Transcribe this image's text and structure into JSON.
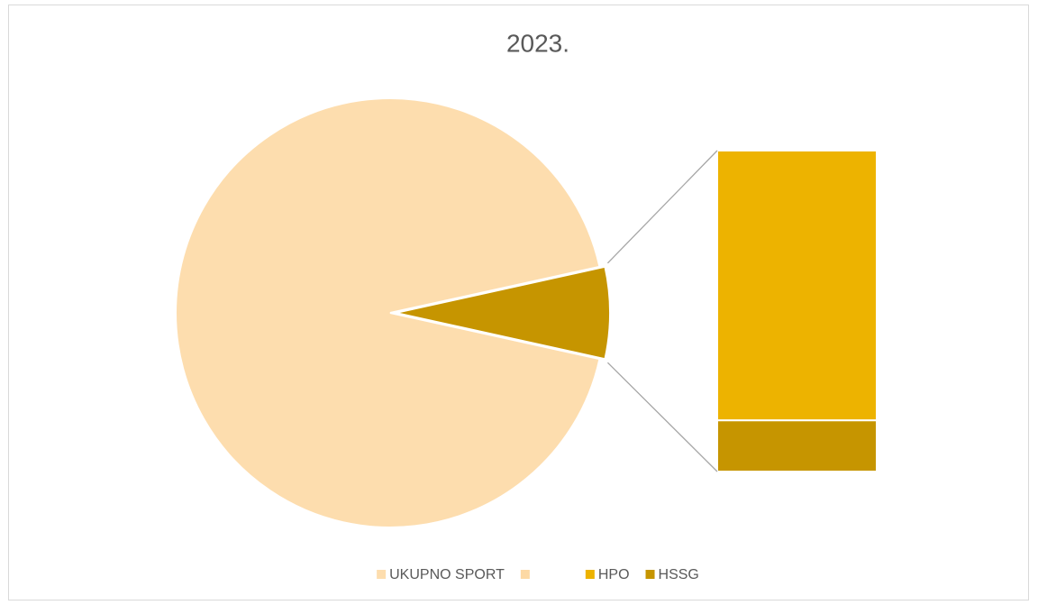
{
  "chart_data": {
    "type": "bar-of-pie",
    "title": "2023.",
    "categories": [
      "UKUPNO SPORT",
      null,
      "HPO",
      "HSSG"
    ],
    "values": [
      93.1,
      null,
      5.8,
      1.1
    ],
    "colors": [
      "#FDDDAE",
      "#FDD9A4",
      "#EDB300",
      "#C69500"
    ],
    "other_color": "#C69500",
    "bar_categories": [
      2,
      3
    ],
    "legend": "bottom"
  }
}
